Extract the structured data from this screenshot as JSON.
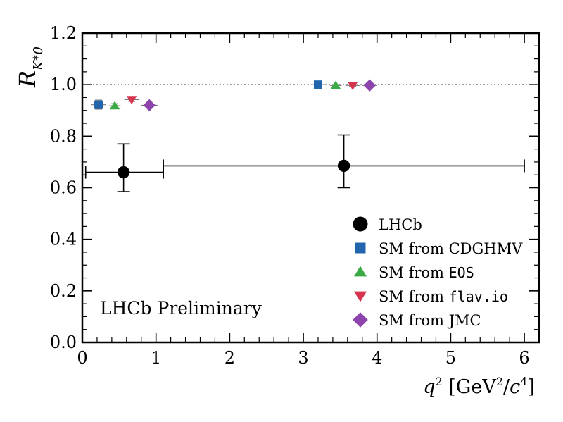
{
  "chart_data": {
    "type": "scatter",
    "title": "",
    "xlabel": "q²  [GeV²/c⁴]",
    "ylabel": "R_K*0",
    "xlim": [
      0,
      6.2
    ],
    "ylim": [
      0,
      1.2
    ],
    "xticks": [
      0,
      1,
      2,
      3,
      4,
      5,
      6
    ],
    "xtick_labels": [
      "0",
      "1",
      "2",
      "3",
      "4",
      "5",
      "6"
    ],
    "yticks": [
      0.0,
      0.2,
      0.4,
      0.6,
      0.8,
      1.0,
      1.2
    ],
    "ytick_labels": [
      "0.0",
      "0.2",
      "0.4",
      "0.6",
      "0.8",
      "1.0",
      "1.2"
    ],
    "reference_line": 1.0,
    "annotation": "LHCb Preliminary",
    "series": [
      {
        "name": "LHCb",
        "marker": "circle",
        "color": "#000000",
        "points": [
          {
            "x": 0.56,
            "y": 0.66,
            "xlo": 0.045,
            "xhi": 1.1,
            "ylo": 0.585,
            "yhi": 0.77
          },
          {
            "x": 3.55,
            "y": 0.685,
            "xlo": 1.1,
            "xhi": 6.0,
            "ylo": 0.6,
            "yhi": 0.805
          }
        ]
      },
      {
        "name": "SM from CDGHMV",
        "marker": "square",
        "color": "#2166ac",
        "points": [
          {
            "x": 0.22,
            "y": 0.922,
            "xlo": 0.12,
            "xhi": 0.32,
            "ylo": 0.905,
            "yhi": 0.94
          },
          {
            "x": 3.2,
            "y": 1.0,
            "xlo": 3.1,
            "xhi": 3.3,
            "ylo": 0.995,
            "yhi": 1.005
          }
        ]
      },
      {
        "name": "SM from EOS",
        "label_prefix": "SM from ",
        "label_code": "EOS",
        "marker": "triangle-up",
        "color": "#3aaa45",
        "points": [
          {
            "x": 0.44,
            "y": 0.918,
            "xlo": 0.36,
            "xhi": 0.52,
            "ylo": 0.91,
            "yhi": 0.926
          },
          {
            "x": 3.44,
            "y": 0.997,
            "xlo": 3.36,
            "xhi": 3.52,
            "ylo": 0.994,
            "yhi": 1.0
          }
        ]
      },
      {
        "name": "SM from flav.io",
        "label_prefix": "SM from ",
        "label_code": "flav.io",
        "marker": "triangle-down",
        "color": "#d6334c",
        "points": [
          {
            "x": 0.67,
            "y": 0.942,
            "xlo": 0.57,
            "xhi": 0.77,
            "ylo": 0.935,
            "yhi": 0.949
          },
          {
            "x": 3.67,
            "y": 0.997,
            "xlo": 3.57,
            "xhi": 3.77,
            "ylo": 0.994,
            "yhi": 1.0
          }
        ]
      },
      {
        "name": "SM from JMC",
        "marker": "diamond",
        "color": "#8e44ad",
        "points": [
          {
            "x": 0.91,
            "y": 0.92,
            "xlo": 0.8,
            "xhi": 1.02,
            "ylo": 0.912,
            "yhi": 0.928
          },
          {
            "x": 3.9,
            "y": 0.997,
            "xlo": 3.8,
            "xhi": 4.0,
            "ylo": 0.994,
            "yhi": 1.0
          }
        ]
      }
    ]
  }
}
